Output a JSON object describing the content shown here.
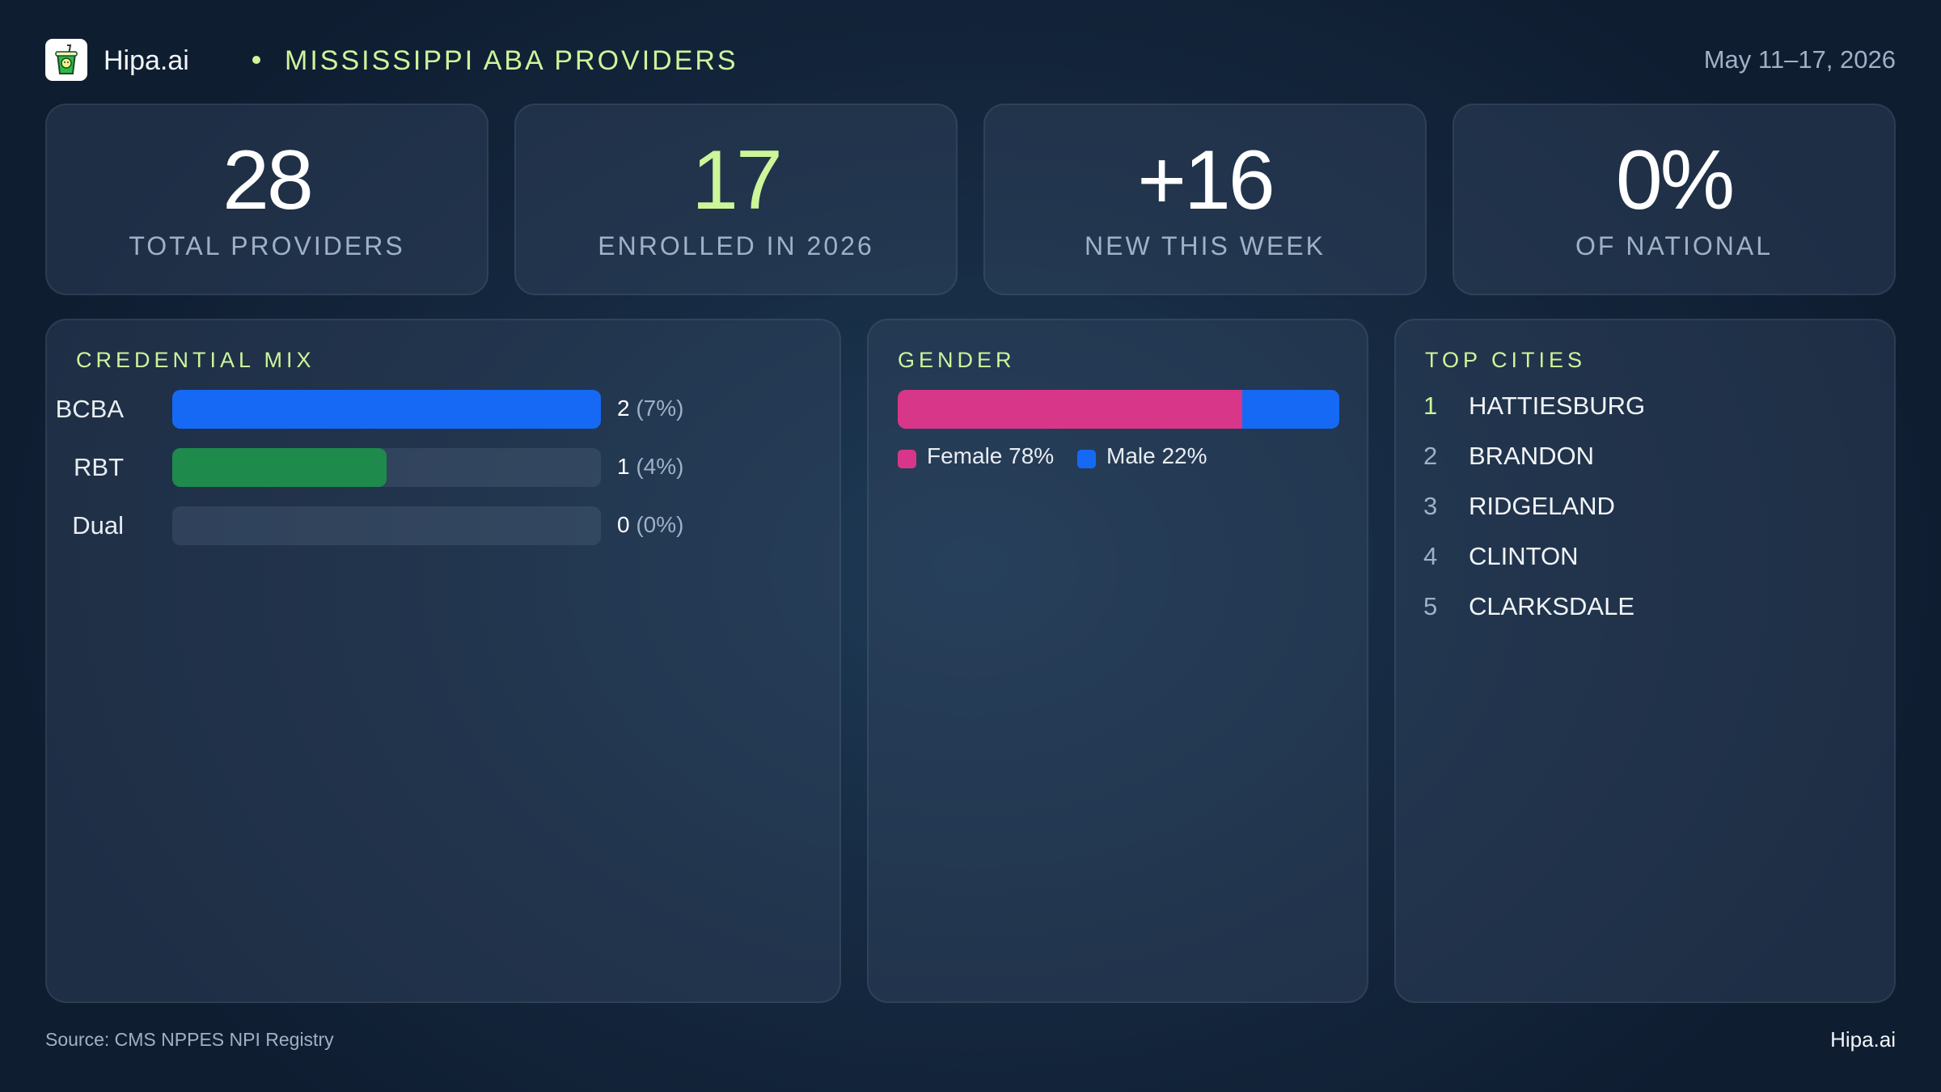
{
  "header": {
    "brand": "Hipa.ai",
    "subtitle": "MISSISSIPPI ABA PROVIDERS",
    "date": "May 11–17, 2026",
    "logo_icon": "cup-with-straw-icon"
  },
  "kpis": [
    {
      "value": "28",
      "label": "TOTAL PROVIDERS",
      "color": "#ffffff"
    },
    {
      "value": "17",
      "label": "ENROLLED IN 2026",
      "color": "#cdf59a"
    },
    {
      "value": "+16",
      "label": "NEW THIS WEEK",
      "color": "#ffffff"
    },
    {
      "value": "0%",
      "label": "OF NATIONAL",
      "color": "#ffffff"
    }
  ],
  "chart_data": [
    {
      "type": "bar",
      "title": "CREDENTIAL MIX",
      "categories": [
        "BCBA",
        "RBT",
        "Dual"
      ],
      "values": [
        2,
        1,
        0
      ],
      "percent_labels": [
        "(7%)",
        "(4%)",
        "(0%)"
      ],
      "colors": [
        "#1569f5",
        "#1e8a4c",
        "#1569f5"
      ]
    },
    {
      "type": "bar",
      "title": "GENDER",
      "series": [
        {
          "name": "Female",
          "value": 78,
          "label": "Female 78%",
          "color": "#d83688"
        },
        {
          "name": "Male",
          "value": 22,
          "label": "Male 22%",
          "color": "#1569f5"
        }
      ]
    }
  ],
  "top_cities": {
    "title": "TOP CITIES",
    "items": [
      {
        "rank": "1",
        "name": "HATTIESBURG"
      },
      {
        "rank": "2",
        "name": "BRANDON"
      },
      {
        "rank": "3",
        "name": "RIDGELAND"
      },
      {
        "rank": "4",
        "name": "CLINTON"
      },
      {
        "rank": "5",
        "name": "CLARKSDALE"
      }
    ]
  },
  "footer": {
    "source": "Source: CMS NPPES NPI Registry",
    "brand": "Hipa.ai"
  }
}
